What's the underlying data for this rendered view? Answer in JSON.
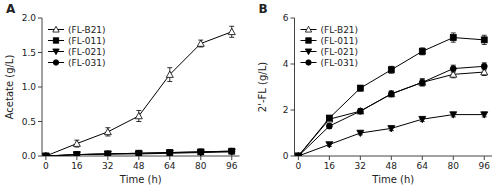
{
  "chart_data": [
    {
      "type": "line",
      "title": "A",
      "x_label": "Time (h)",
      "y_label": "Acetate (g/L)",
      "x": [
        0,
        16,
        32,
        48,
        64,
        80,
        96
      ],
      "xlim": [
        -2,
        100
      ],
      "xticks": [
        0,
        16,
        32,
        48,
        64,
        80,
        96
      ],
      "ylim": [
        0,
        2.0
      ],
      "yticks": [
        {
          "value": 0,
          "label": "0.0"
        },
        0.5,
        {
          "value": 1.0,
          "label": "1.0"
        },
        1.5,
        {
          "value": 2.0,
          "label": "2.0"
        }
      ],
      "legend": "upper-left",
      "series": [
        {
          "name": "(FL-B21)",
          "color": "black",
          "marker": "triangle-up-open",
          "line_style": "solid",
          "values": [
            0.0,
            0.18,
            0.35,
            0.58,
            1.18,
            1.63,
            1.8
          ],
          "errors": [
            0.0,
            0.05,
            0.06,
            0.08,
            0.1,
            0.05,
            0.08
          ]
        },
        {
          "name": "(FL-011)",
          "color": "black",
          "marker": "square",
          "line_style": "solid",
          "values": [
            0.0,
            0.02,
            0.03,
            0.04,
            0.05,
            0.06,
            0.07
          ],
          "errors": [
            0.0,
            0.005,
            0.005,
            0.005,
            0.005,
            0.005,
            0.01
          ]
        },
        {
          "name": "(FL-021)",
          "color": "black",
          "marker": "triangle-down",
          "line_style": "solid",
          "values": [
            0.0,
            0.02,
            0.03,
            0.03,
            0.04,
            0.05,
            0.06
          ],
          "errors": [
            0.0,
            0.005,
            0.005,
            0.005,
            0.005,
            0.005,
            0.008
          ]
        },
        {
          "name": "(FL-031)",
          "color": "black",
          "marker": "circle",
          "line_style": "solid",
          "values": [
            0.0,
            0.02,
            0.03,
            0.04,
            0.05,
            0.06,
            0.07
          ],
          "errors": [
            0.0,
            0.005,
            0.005,
            0.005,
            0.005,
            0.005,
            0.01
          ]
        }
      ]
    },
    {
      "type": "line",
      "title": "B",
      "x_label": "Time (h)",
      "y_label": "2'-FL (g/L)",
      "x": [
        0,
        16,
        32,
        48,
        64,
        80,
        96
      ],
      "xlim": [
        -2,
        100
      ],
      "xticks": [
        0,
        16,
        32,
        48,
        64,
        80,
        96
      ],
      "ylim": [
        0,
        6
      ],
      "yticks": [
        0,
        2,
        4,
        6
      ],
      "legend": "upper-left",
      "series": [
        {
          "name": "(FL-B21)",
          "color": "black",
          "marker": "triangle-up-open",
          "line_style": "solid",
          "values": [
            0.0,
            1.6,
            1.95,
            2.7,
            3.2,
            3.55,
            3.65
          ],
          "errors": [
            0.0,
            0.1,
            0.1,
            0.12,
            0.15,
            0.15,
            0.15
          ]
        },
        {
          "name": "(FL-011)",
          "color": "black",
          "marker": "square",
          "line_style": "solid",
          "values": [
            0.0,
            1.65,
            2.95,
            3.75,
            4.55,
            5.15,
            5.05
          ],
          "errors": [
            0.0,
            0.1,
            0.12,
            0.15,
            0.15,
            0.2,
            0.2
          ]
        },
        {
          "name": "(FL-021)",
          "color": "black",
          "marker": "triangle-down",
          "line_style": "solid",
          "values": [
            0.0,
            0.5,
            1.0,
            1.2,
            1.6,
            1.8,
            1.8
          ],
          "errors": [
            0.0,
            0.08,
            0.08,
            0.1,
            0.1,
            0.1,
            0.1
          ]
        },
        {
          "name": "(FL-031)",
          "color": "black",
          "marker": "circle",
          "line_style": "solid",
          "values": [
            0.0,
            1.3,
            1.95,
            2.7,
            3.2,
            3.8,
            3.9
          ],
          "errors": [
            0.0,
            0.1,
            0.1,
            0.12,
            0.15,
            0.15,
            0.15
          ]
        }
      ]
    }
  ]
}
